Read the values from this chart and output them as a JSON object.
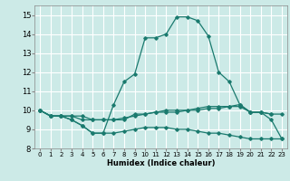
{
  "title": "",
  "xlabel": "Humidex (Indice chaleur)",
  "xlim": [
    -0.5,
    23.5
  ],
  "ylim": [
    8,
    15.5
  ],
  "yticks": [
    8,
    9,
    10,
    11,
    12,
    13,
    14,
    15
  ],
  "xticks": [
    0,
    1,
    2,
    3,
    4,
    5,
    6,
    7,
    8,
    9,
    10,
    11,
    12,
    13,
    14,
    15,
    16,
    17,
    18,
    19,
    20,
    21,
    22,
    23
  ],
  "bg_color": "#cceae7",
  "grid_color": "#ffffff",
  "line_color": "#1a7a6e",
  "lines": [
    {
      "x": [
        0,
        1,
        2,
        3,
        4,
        5,
        6,
        7,
        8,
        9,
        10,
        11,
        12,
        13,
        14,
        15,
        16,
        17,
        18,
        19,
        20,
        21,
        22
      ],
      "y": [
        10.0,
        9.7,
        9.7,
        9.5,
        9.2,
        8.8,
        8.8,
        10.3,
        11.5,
        11.9,
        13.8,
        13.8,
        14.0,
        14.9,
        14.9,
        14.7,
        13.9,
        12.0,
        11.5,
        10.3,
        9.9,
        9.9,
        9.8
      ]
    },
    {
      "x": [
        0,
        1,
        2,
        3,
        4,
        5,
        6,
        7,
        8,
        9,
        10,
        11,
        12,
        13,
        14,
        15,
        16,
        17,
        18,
        19,
        20,
        21,
        22,
        23
      ],
      "y": [
        10.0,
        9.7,
        9.7,
        9.7,
        9.7,
        9.5,
        9.5,
        9.5,
        9.5,
        9.8,
        9.8,
        9.9,
        10.0,
        10.0,
        10.0,
        10.1,
        10.2,
        10.2,
        10.2,
        10.3,
        9.9,
        9.9,
        9.8,
        9.8
      ]
    },
    {
      "x": [
        0,
        1,
        2,
        3,
        4,
        5,
        6,
        7,
        8,
        9,
        10,
        11,
        12,
        13,
        14,
        15,
        16,
        17,
        18,
        19,
        20,
        21,
        22,
        23
      ],
      "y": [
        10.0,
        9.7,
        9.7,
        9.5,
        9.2,
        8.8,
        8.8,
        8.8,
        8.9,
        9.0,
        9.1,
        9.1,
        9.1,
        9.0,
        9.0,
        8.9,
        8.8,
        8.8,
        8.7,
        8.6,
        8.5,
        8.5,
        8.5,
        8.5
      ]
    },
    {
      "x": [
        0,
        1,
        2,
        3,
        4,
        5,
        6,
        7,
        8,
        9,
        10,
        11,
        12,
        13,
        14,
        15,
        16,
        17,
        18,
        19,
        20,
        21,
        22,
        23
      ],
      "y": [
        10.0,
        9.7,
        9.7,
        9.7,
        9.5,
        9.5,
        9.5,
        9.5,
        9.6,
        9.7,
        9.8,
        9.9,
        9.9,
        9.9,
        10.0,
        10.0,
        10.1,
        10.1,
        10.2,
        10.2,
        9.9,
        9.9,
        9.5,
        8.5
      ]
    }
  ]
}
